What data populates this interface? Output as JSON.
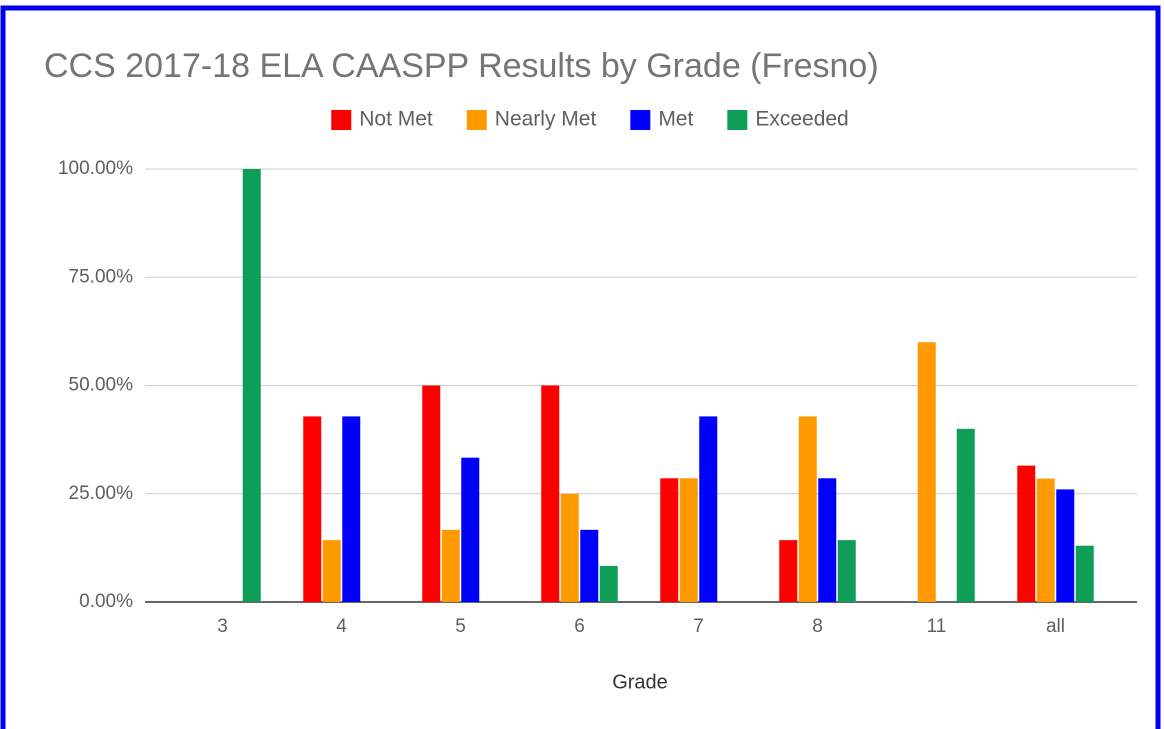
{
  "chart_data": {
    "type": "bar",
    "title": "CCS 2017-18 ELA CAASPP Results by Grade (Fresno)",
    "x_label": "Grade",
    "categories": [
      "3",
      "4",
      "5",
      "6",
      "7",
      "8",
      "11",
      "all"
    ],
    "series": [
      {
        "name": "Not Met",
        "color": "#ff0000",
        "values": [
          0,
          42.86,
          50,
          50,
          28.57,
          14.29,
          0,
          31.5
        ]
      },
      {
        "name": "Nearly Met",
        "color": "#ff9900",
        "values": [
          0,
          14.29,
          16.67,
          25,
          28.57,
          42.86,
          60,
          28.5
        ]
      },
      {
        "name": "Met",
        "color": "#0000ff",
        "values": [
          0,
          42.86,
          33.33,
          16.67,
          42.86,
          28.57,
          0,
          26
        ]
      },
      {
        "name": "Exceeded",
        "color": "#0f9d58",
        "values": [
          100,
          0,
          0,
          8.33,
          0,
          14.29,
          40,
          13
        ]
      }
    ],
    "ylim": [
      0,
      100
    ],
    "yticks": [
      {
        "value": 0,
        "label": "0.00%"
      },
      {
        "value": 25,
        "label": "25.00%"
      },
      {
        "value": 50,
        "label": "50.00%"
      },
      {
        "value": 75,
        "label": "75.00%"
      },
      {
        "value": 100,
        "label": "100.00%"
      }
    ],
    "grid": true,
    "legend": "top"
  }
}
